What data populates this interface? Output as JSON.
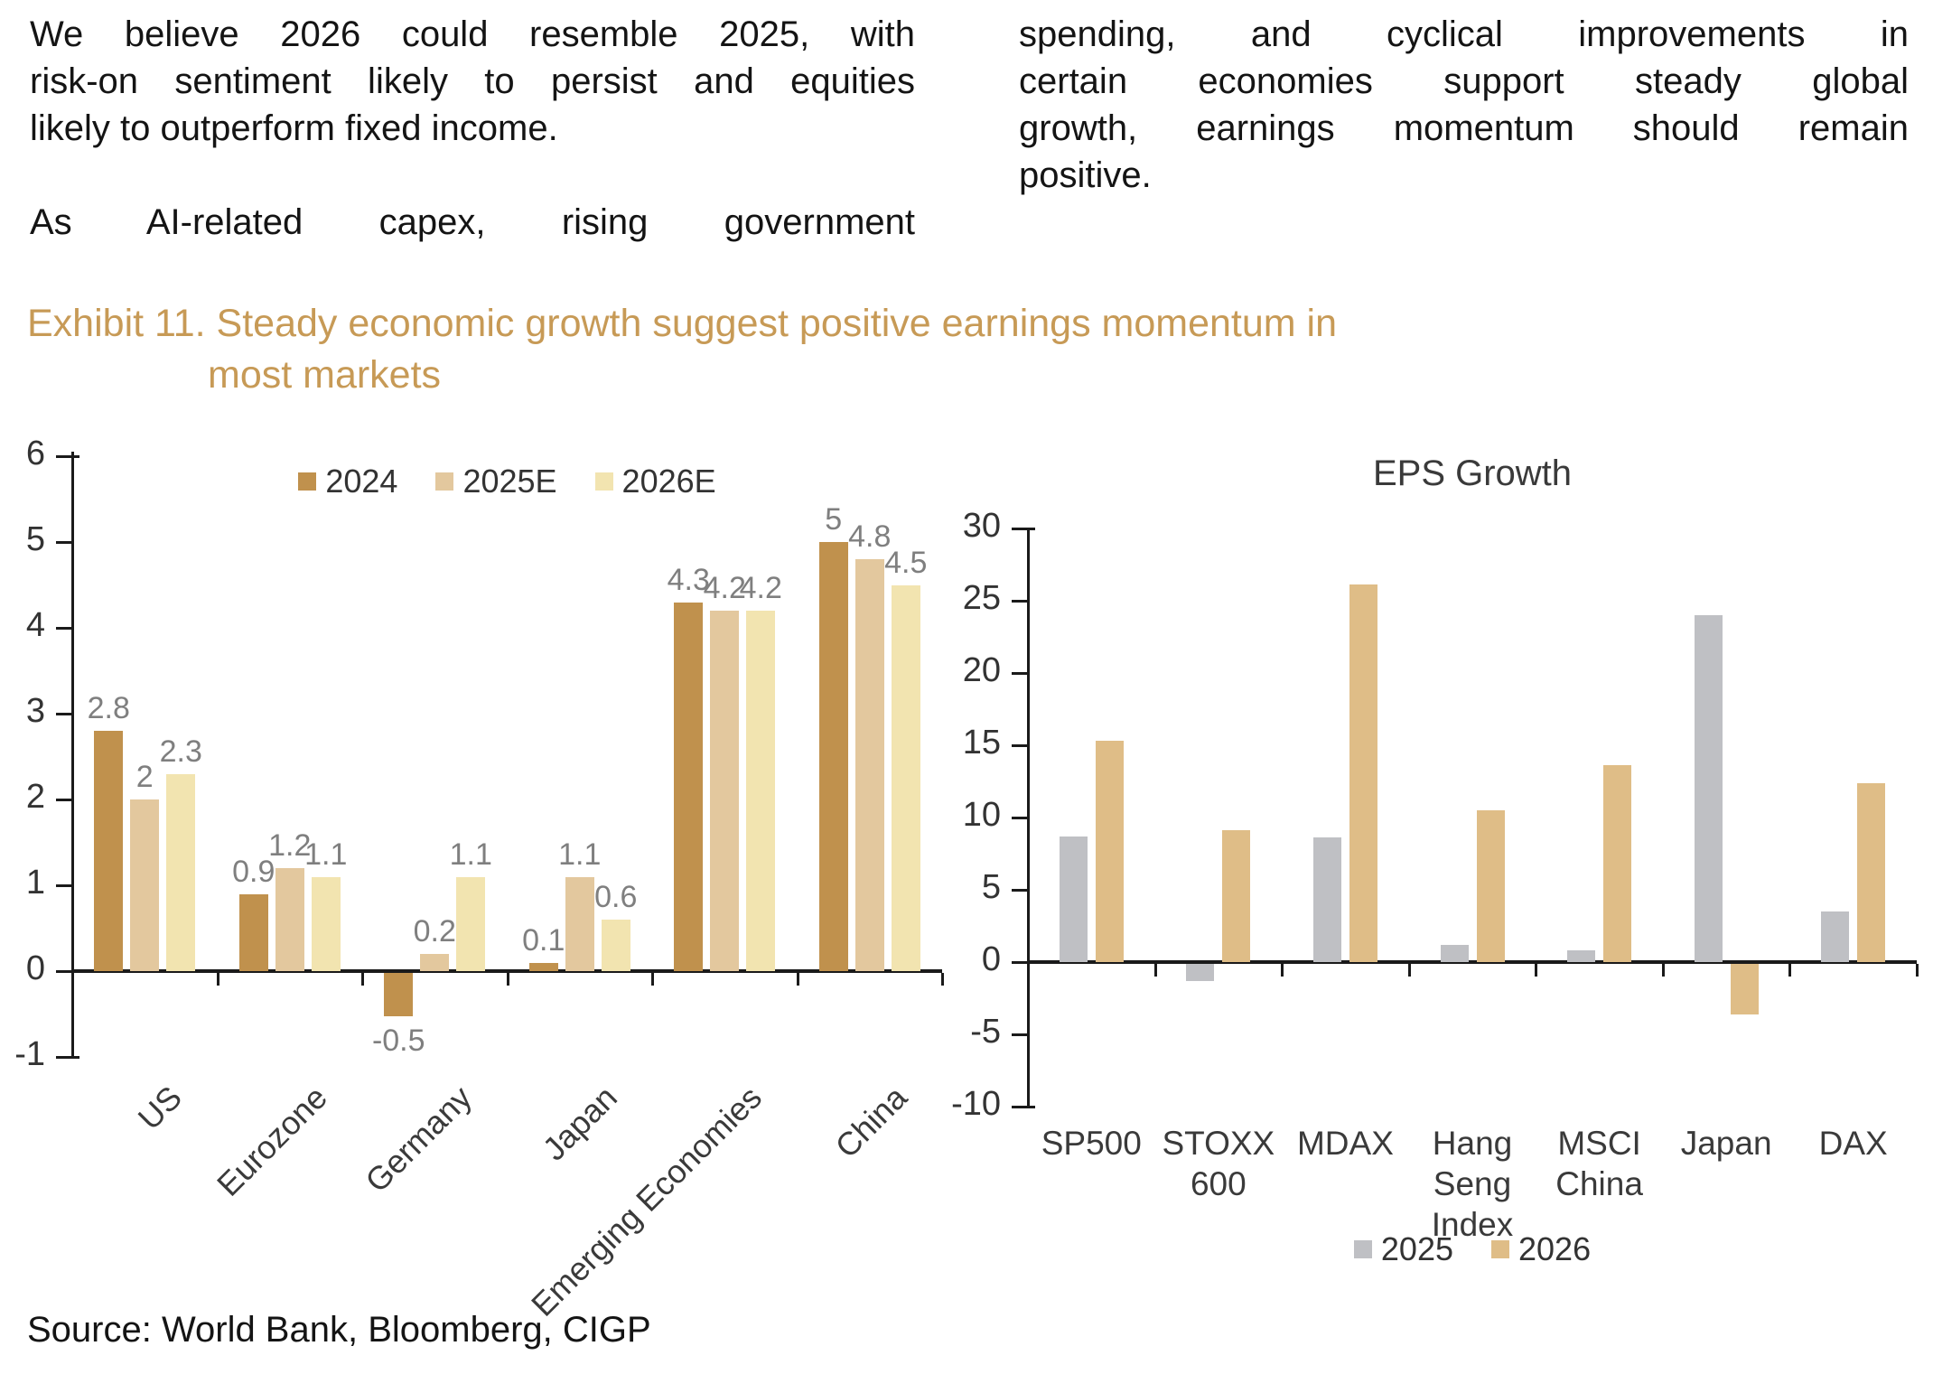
{
  "page": {
    "paragraphs": {
      "left_col_p1": [
        "We believe 2026 could resemble 2025, with",
        "risk-on sentiment likely to persist and equities",
        "likely to outperform fixed income."
      ],
      "left_col_p2": [
        "As AI-related capex, rising government"
      ],
      "right_col_p1": [
        "spending, and cyclical improvements in",
        "certain economies support steady global",
        "growth, earnings momentum should remain",
        "positive."
      ]
    },
    "exhibit_title": {
      "line1": "Exhibit 11. Steady economic growth suggest positive earnings momentum in",
      "line2": "most markets",
      "color": "#C79A56"
    },
    "source_line": "Source: World Bank, Bloomberg, CIGP"
  },
  "chart_data": [
    {
      "name": "gdp-growth",
      "type": "bar",
      "title": "",
      "categories": [
        "US",
        "Eurozone",
        "Germany",
        "Japan",
        "Emerging Economies",
        "China"
      ],
      "series": [
        {
          "name": "2024",
          "color": "#C0914D",
          "values": [
            2.8,
            0.9,
            -0.5,
            0.1,
            4.3,
            5
          ]
        },
        {
          "name": "2025E",
          "color": "#E3C89E",
          "values": [
            2,
            1.2,
            0.2,
            1.1,
            4.2,
            4.8
          ]
        },
        {
          "name": "2026E",
          "color": "#F2E4B0",
          "values": [
            2.3,
            1.1,
            1.1,
            0.6,
            4.2,
            4.5
          ]
        }
      ],
      "ylim": [
        -1,
        6
      ],
      "yticks": [
        6,
        5,
        4,
        3,
        2,
        1,
        0,
        -1
      ],
      "data_labels": true,
      "grid": false,
      "legend_position": "top"
    },
    {
      "name": "eps-growth",
      "type": "bar",
      "title": "EPS Growth",
      "categories": [
        "SP500",
        "STOXX 600",
        "MDAX",
        "Hang Seng Index",
        "MSCI China",
        "Japan",
        "DAX"
      ],
      "series": [
        {
          "name": "2025",
          "color": "#BFC0C4",
          "values": [
            8.7,
            -1.2,
            8.6,
            1.2,
            0.8,
            24,
            3.5
          ]
        },
        {
          "name": "2026",
          "color": "#DFBD87",
          "values": [
            15.3,
            9.1,
            26.1,
            10.5,
            13.6,
            -3.5,
            12.4
          ]
        }
      ],
      "ylim": [
        -10,
        30
      ],
      "yticks": [
        30,
        25,
        20,
        15,
        10,
        5,
        0,
        -5,
        -10
      ],
      "data_labels": false,
      "grid": false,
      "legend_position": "bottom"
    }
  ]
}
